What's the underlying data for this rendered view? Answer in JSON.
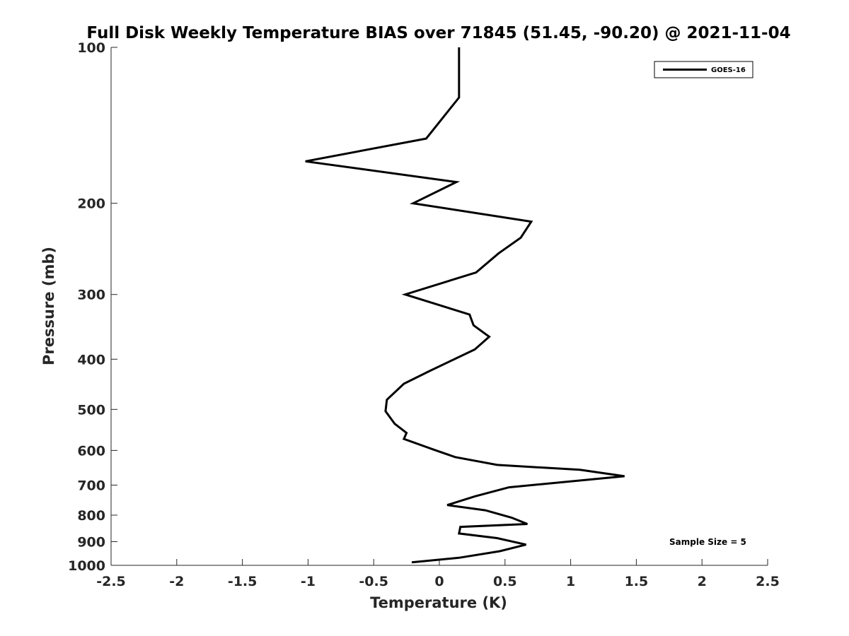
{
  "chart_data": {
    "type": "line",
    "title": "Full Disk Weekly Temperature BIAS over 71845 (51.45, -90.20) @ 2021-11-04",
    "xlabel": "Temperature (K)",
    "ylabel": "Pressure (mb)",
    "xlim": [
      -2.5,
      2.5
    ],
    "ylim": [
      1000,
      100
    ],
    "yscale": "log",
    "y_reversed": true,
    "x_ticks": [
      "-2.5",
      "-2",
      "-1.5",
      "-1",
      "-0.5",
      "0",
      "0.5",
      "1",
      "1.5",
      "2",
      "2.5"
    ],
    "y_ticks": [
      "100",
      "200",
      "300",
      "400",
      "500",
      "600",
      "700",
      "800",
      "900",
      "1000"
    ],
    "grid": false,
    "legend": {
      "position": "top-right",
      "entries": [
        "GOES-16"
      ]
    },
    "annotation": "Sample Size = 5",
    "line_color": "#000000",
    "series": [
      {
        "name": "GOES-16",
        "x": [
          0.15,
          0.15,
          -0.1,
          -1.02,
          0.13,
          -0.2,
          0.7,
          0.62,
          0.45,
          0.28,
          -0.26,
          0.23,
          0.26,
          0.38,
          0.27,
          -0.07,
          -0.27,
          -0.4,
          -0.41,
          -0.34,
          -0.25,
          -0.27,
          -0.05,
          0.12,
          0.44,
          1.07,
          1.41,
          0.53,
          0.27,
          0.06,
          0.35,
          0.55,
          0.67,
          0.16,
          0.15,
          0.44,
          0.66,
          0.46,
          0.15,
          -0.21
        ],
        "y": [
          100,
          125,
          150,
          166,
          182,
          200,
          217,
          233,
          250,
          272,
          300,
          328,
          344,
          362,
          383,
          421,
          446,
          479,
          504,
          533,
          555,
          570,
          597,
          618,
          640,
          654,
          673,
          707,
          736,
          765,
          783,
          809,
          832,
          843,
          868,
          886,
          912,
          939,
          967,
          987
        ]
      }
    ]
  }
}
